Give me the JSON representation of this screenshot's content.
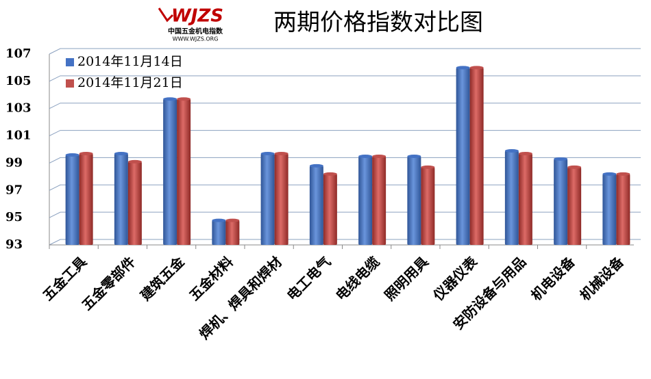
{
  "logo": {
    "mark": "WJZS",
    "name": "中国五金机电指数",
    "url": "WWW.WJZS.ORG"
  },
  "chart_data": {
    "type": "bar",
    "title": "两期价格指数对比图",
    "categories": [
      "五金工具",
      "五金零部件",
      "建筑五金",
      "五金材料",
      "焊机、焊具和焊材",
      "电工电气",
      "电线电缆",
      "照明用具",
      "仪器仪表",
      "安防设备与用品",
      "机电设备",
      "机械设备"
    ],
    "series": [
      {
        "name": "2014年11月14日",
        "color": "#4472c4",
        "values": [
          99.6,
          99.7,
          103.7,
          94.8,
          99.7,
          98.8,
          99.5,
          99.5,
          106.0,
          99.9,
          99.3,
          98.2
        ]
      },
      {
        "name": "2014年11月21日",
        "color": "#c0504d",
        "values": [
          99.7,
          99.1,
          103.7,
          94.8,
          99.7,
          98.2,
          99.5,
          98.7,
          106.0,
          99.7,
          98.7,
          98.2
        ]
      }
    ],
    "ylim": [
      93,
      107
    ],
    "yticks": [
      93,
      95,
      97,
      99,
      101,
      103,
      105,
      107
    ],
    "grid": true,
    "legend": "top-left"
  }
}
